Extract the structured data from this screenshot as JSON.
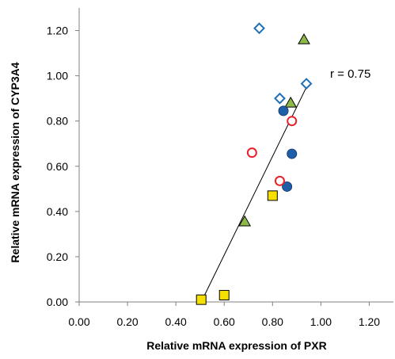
{
  "chart_data": {
    "type": "scatter",
    "title": "",
    "xlabel": "Relative mRNA expression of PXR",
    "ylabel": "Relative mRNA expression of CYP3A4",
    "xlim": [
      0,
      1.3
    ],
    "ylim": [
      0,
      1.3
    ],
    "xticks": [
      "0.00",
      "0.20",
      "0.40",
      "0.60",
      "0.80",
      "1.00",
      "1.20"
    ],
    "yticks": [
      "0.00",
      "0.20",
      "0.40",
      "0.60",
      "0.80",
      "1.00",
      "1.20"
    ],
    "grid": false,
    "annotation": "r = 0.75",
    "series": [
      {
        "marker": "diamond-open",
        "color": "#1f6fb5",
        "x": [
          0.745,
          0.83,
          0.94
        ],
        "y": [
          1.21,
          0.9,
          0.965
        ]
      },
      {
        "marker": "triangle",
        "color": "#8db84a",
        "x": [
          0.93,
          0.875,
          0.685
        ],
        "y": [
          1.16,
          0.88,
          0.355
        ]
      },
      {
        "marker": "circle-filled",
        "color": "#1f5fa8",
        "x": [
          0.845,
          0.88,
          0.86
        ],
        "y": [
          0.845,
          0.655,
          0.51
        ]
      },
      {
        "marker": "circle-open",
        "color": "#e8202a",
        "x": [
          0.88,
          0.715,
          0.83
        ],
        "y": [
          0.8,
          0.66,
          0.535
        ]
      },
      {
        "marker": "square",
        "color": "#f5e000",
        "x": [
          0.8,
          0.505,
          0.6
        ],
        "y": [
          0.47,
          0.01,
          0.03
        ]
      }
    ],
    "trendline": {
      "x": [
        0.505,
        0.945
      ],
      "y": [
        0.0,
        0.96
      ]
    }
  }
}
